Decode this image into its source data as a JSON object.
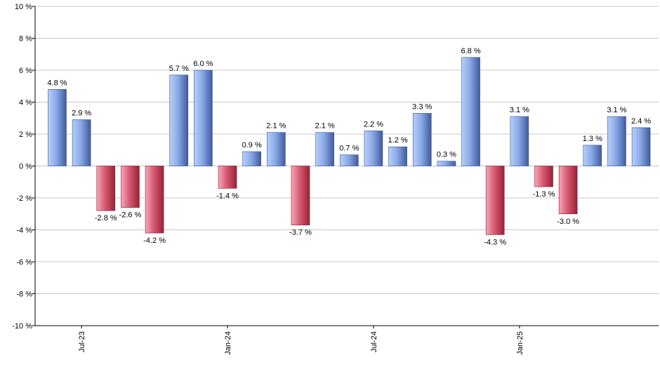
{
  "chart_data": {
    "type": "bar",
    "title": "",
    "xlabel": "",
    "ylabel": "",
    "ylim": [
      -10,
      10
    ],
    "y_ticks": [
      -10,
      -8,
      -6,
      -4,
      -2,
      0,
      2,
      4,
      6,
      8,
      10
    ],
    "y_tick_suffix": " %",
    "grid": true,
    "legend": "none",
    "x_tick_labels": [
      {
        "label": "Jul-23",
        "index": 1
      },
      {
        "label": "Jan-24",
        "index": 7
      },
      {
        "label": "Jul-24",
        "index": 13
      },
      {
        "label": "Jan-25",
        "index": 19
      }
    ],
    "values": [
      4.8,
      2.9,
      -2.8,
      -2.6,
      -4.2,
      5.7,
      6.0,
      -1.4,
      0.9,
      2.1,
      -3.7,
      2.1,
      0.7,
      2.2,
      1.2,
      3.3,
      0.3,
      6.8,
      -4.3,
      3.1,
      -1.3,
      -3.0,
      1.3,
      3.1,
      2.4
    ],
    "data_labels": [
      "4.8 %",
      "2.9 %",
      "-2.8 %",
      "-2.6 %",
      "-4.2 %",
      "5.7 %",
      "6.0 %",
      "-1.4 %",
      "0.9 %",
      "2.1 %",
      "-3.7 %",
      "2.1 %",
      "0.7 %",
      "2.2 %",
      "1.2 %",
      "3.3 %",
      "0.3 %",
      "6.8 %",
      "-4.3 %",
      "3.1 %",
      "-1.3 %",
      "-3.0 %",
      "1.3 %",
      "3.1 %",
      "2.4 %"
    ],
    "colors": {
      "positive_light": "#a9c4f5",
      "positive_dark": "#3e5b9c",
      "negative_light": "#f0a0b0",
      "negative_dark": "#a02840",
      "grid": "#c8c8c8",
      "axis": "#000000"
    }
  }
}
